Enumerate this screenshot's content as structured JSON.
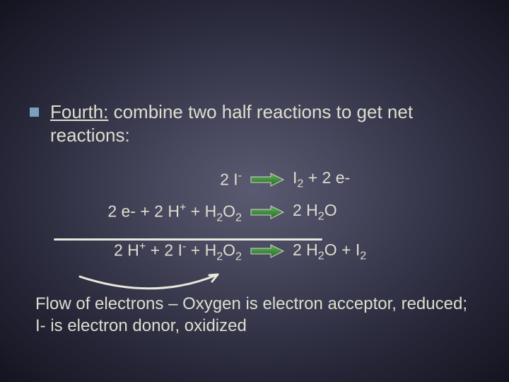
{
  "heading": {
    "prefix": "Fourth:",
    "rest": " combine two half reactions to get net reactions:"
  },
  "reactions": {
    "r1": {
      "left_html": "2 I<sup>-</sup>",
      "right_html": "I<sub>2</sub> + 2 e-"
    },
    "r2": {
      "left_html": "2 e- + 2 H<sup>+</sup>  + H<sub>2</sub>O<sub>2</sub>",
      "right_html": "2 H<sub>2</sub>O"
    },
    "r3": {
      "left_html": "2 H<sup>+</sup> + 2 I<sup>-</sup> + H<sub>2</sub>O<sub>2</sub>",
      "right_html": "2 H<sub>2</sub>O + I<sub>2</sub>"
    }
  },
  "footer": "Flow of electrons – Oxygen is electron acceptor, reduced; I- is electron donor, oxidized",
  "style": {
    "bullet_color": "#7aa0c0",
    "text_color": "#dedeD0",
    "arrow_fill_start": "#4a9a4a",
    "arrow_fill_end": "#2a6a2a",
    "arrow_stroke": "#d4d4c8",
    "divider_color": "#e8e8dc",
    "curve_color": "#e8e8dc",
    "background": {
      "type": "radial",
      "stops": [
        "#5a5a72",
        "#3d3d52",
        "#262638",
        "#141420"
      ]
    },
    "font_family": "Verdana",
    "heading_fontsize": 26,
    "reaction_fontsize": 23,
    "footer_fontsize": 24,
    "slide_width": 720,
    "slide_height": 540
  }
}
